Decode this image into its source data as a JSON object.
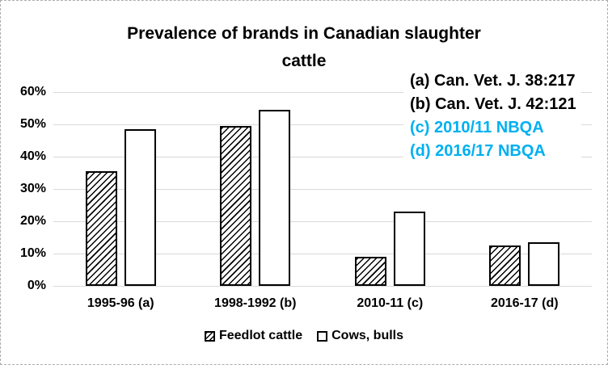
{
  "title": {
    "line1": "Prevalence of brands in Canadian slaughter",
    "line2": "cattle"
  },
  "annotations": [
    {
      "text": "(a) Can. Vet. J. 38:217",
      "color": "#000000"
    },
    {
      "text": "(b) Can. Vet. J. 42:121",
      "color": "#000000"
    },
    {
      "text": "(c) 2010/11 NBQA",
      "color": "#00B0F0"
    },
    {
      "text": "(d) 2016/17 NBQA",
      "color": "#00B0F0"
    }
  ],
  "chart_data": {
    "type": "bar",
    "title": "Prevalence of brands in Canadian slaughter cattle",
    "categories": [
      "1995-96 (a)",
      "1998-1992 (b)",
      "2010-11 (c)",
      "2016-17 (d)"
    ],
    "series": [
      {
        "name": "Feedlot cattle",
        "fill": "diagonal-hatch",
        "values": [
          35.5,
          49.5,
          9,
          12.5
        ]
      },
      {
        "name": "Cows, bulls",
        "fill": "white",
        "values": [
          48.5,
          54.5,
          23,
          13.5
        ]
      }
    ],
    "xlabel": "",
    "ylabel": "",
    "ylim": [
      0,
      60
    ],
    "yticks": [
      "0%",
      "10%",
      "20%",
      "30%",
      "40%",
      "50%",
      "60%"
    ],
    "value_unit": "percent",
    "grid": true,
    "legend_position": "bottom"
  },
  "colors": {
    "annotation_blue": "#00B0F0",
    "gridline": "#d9d9d9",
    "bar_border": "#000000",
    "bar_fill": "#ffffff",
    "text": "#000000",
    "background": "#ffffff"
  }
}
